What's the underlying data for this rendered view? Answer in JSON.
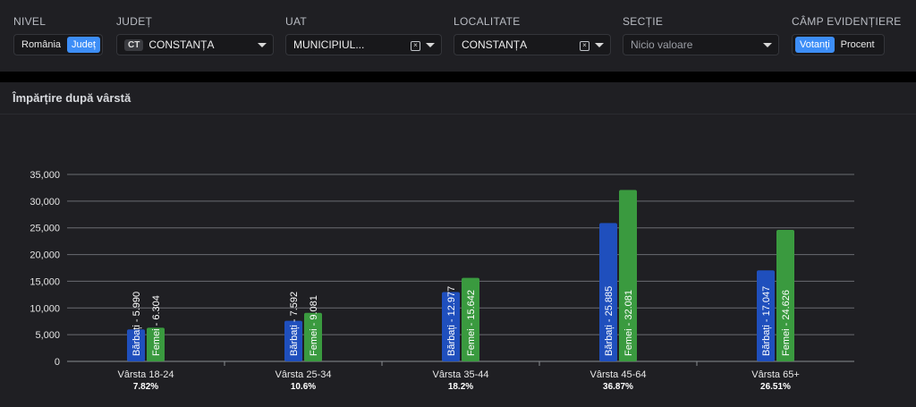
{
  "filters": {
    "nivel": {
      "label": "NIVEL",
      "options": [
        "România",
        "Județ"
      ],
      "selected": "Județ"
    },
    "judet": {
      "label": "JUDEȚ",
      "badge": "CT",
      "value": "CONSTANȚA"
    },
    "uat": {
      "label": "UAT",
      "value": "MUNICIPIUL..."
    },
    "localitate": {
      "label": "LOCALITATE",
      "value": "CONSTANȚA"
    },
    "sectie": {
      "label": "SECȚIE",
      "placeholder": "Nicio valoare"
    },
    "camp": {
      "label": "CÂMP EVIDENȚIERE",
      "options": [
        "Votanți",
        "Procent"
      ],
      "selected": "Votanți"
    }
  },
  "card": {
    "title": "Împărțire după vârstă"
  },
  "colors": {
    "barbati": "#1f4fbd",
    "femei": "#3a9a3f",
    "accent": "#3d8ef7"
  },
  "icons": {
    "clear": "clear-x-icon",
    "dropdown": "chevron-down-icon"
  },
  "chart_data": {
    "type": "bar",
    "categories": [
      "Vârsta 18-24",
      "Vârsta 25-34",
      "Vârsta 35-44",
      "Vârsta 45-64",
      "Vârsta 65+"
    ],
    "percentages": [
      "7.82%",
      "10.6%",
      "18.2%",
      "36.87%",
      "26.51%"
    ],
    "series": [
      {
        "name": "Bărbați",
        "values": [
          5990,
          7592,
          12977,
          25885,
          17047
        ],
        "labels": [
          "Bărbați - 5.990",
          "Bărbați - 7.592",
          "Bărbați - 12.977",
          "Bărbați - 25.885",
          "Bărbați - 17.047"
        ]
      },
      {
        "name": "Femei",
        "values": [
          6304,
          9081,
          15642,
          32081,
          24626
        ],
        "labels": [
          "Femei - 6.304",
          "Femei - 9.081",
          "Femei - 15.642",
          "Femei - 32.081",
          "Femei - 24.626"
        ]
      }
    ],
    "yticks": [
      "0",
      "5,000",
      "10,000",
      "15,000",
      "20,000",
      "25,000",
      "30,000",
      "35,000"
    ],
    "ylim": [
      0,
      35000
    ],
    "grid": true
  }
}
